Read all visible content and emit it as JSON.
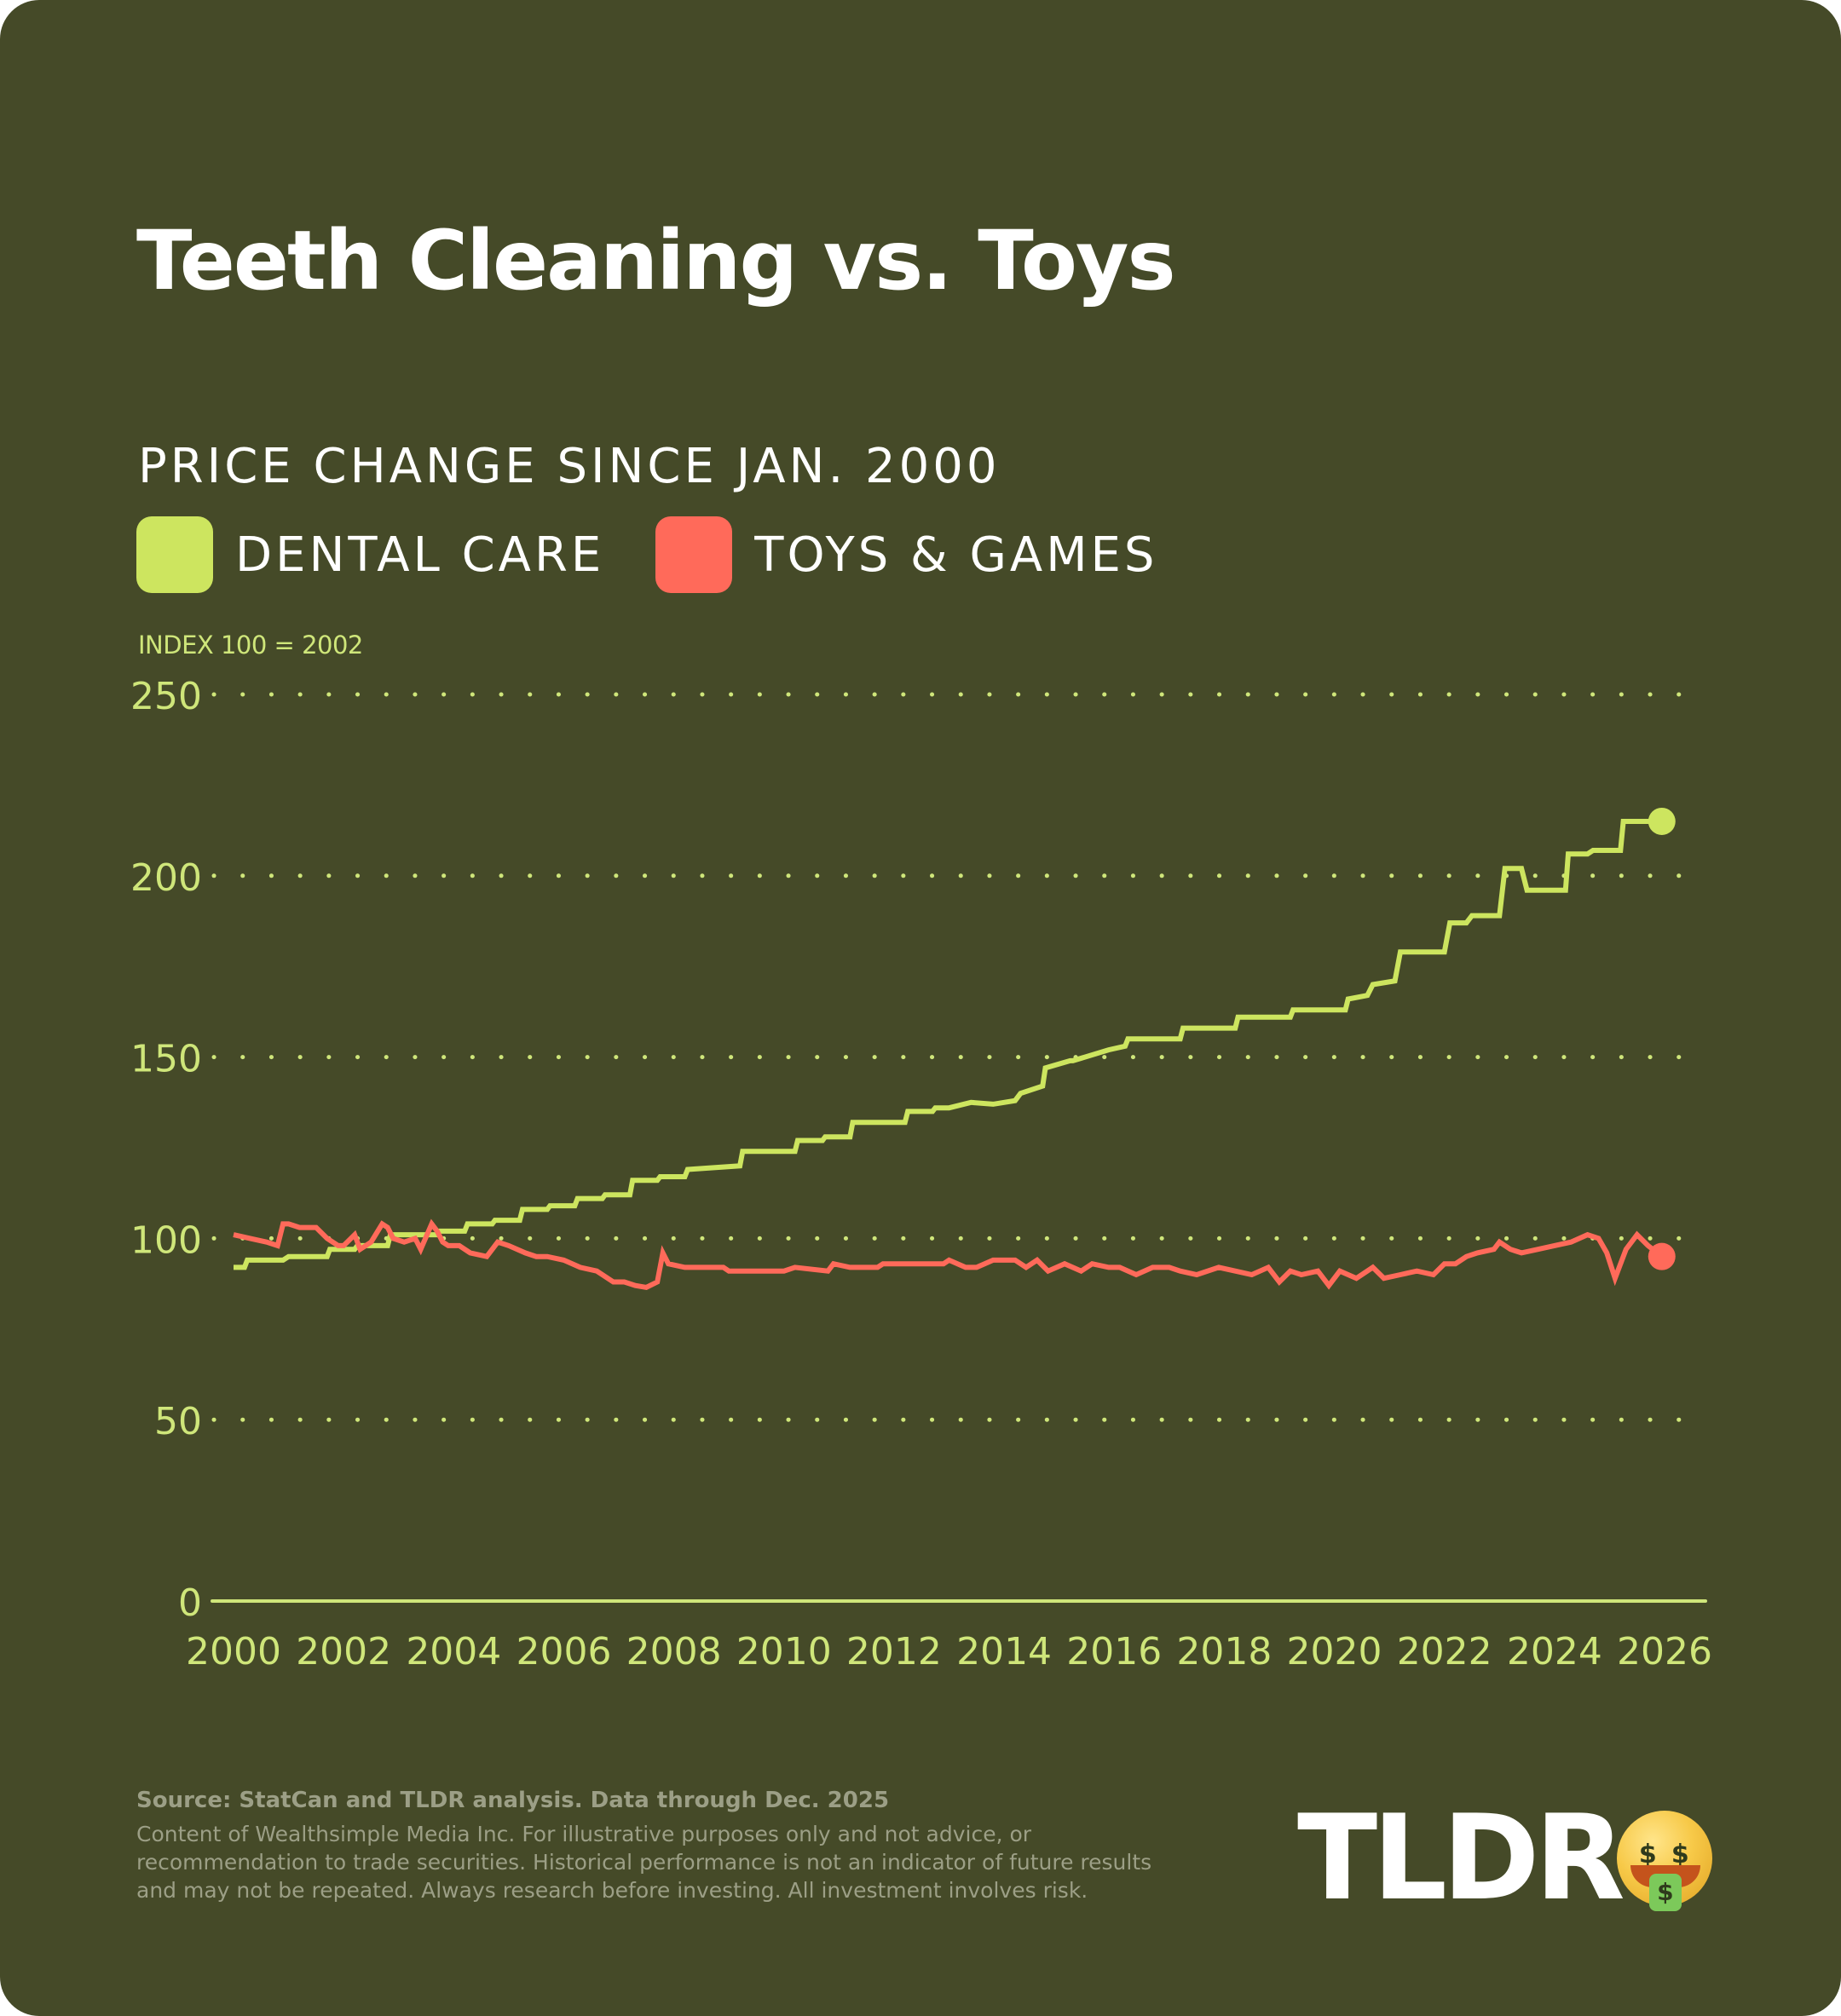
{
  "title": "Teeth Cleaning vs. Toys",
  "subtitle": "PRICE CHANGE SINCE JAN. 2000",
  "legend": [
    {
      "label": "DENTAL CARE",
      "color": "#cde55f"
    },
    {
      "label": "TOYS & GAMES",
      "color": "#ff6a5a"
    }
  ],
  "index_note": "INDEX 100 = 2002",
  "footer": {
    "source": "Source: StatCan and TLDR analysis. Data through Dec. 2025",
    "disclaimer": "Content of Wealthsimple Media Inc. For illustrative purposes only and not advice, or recommendation to trade securities. Historical performance is not an indicator of future results and may not be repeated. Always research before investing. All investment involves risk."
  },
  "logo": {
    "text": "TLDR",
    "emoji": "money-mouth-face"
  },
  "colors": {
    "background": "#454a28",
    "axis": "#cfe67a",
    "text": "#ffffff",
    "footer": "#9c9f86"
  },
  "chart_data": {
    "type": "line",
    "title": "Teeth Cleaning vs. Toys",
    "subtitle": "PRICE CHANGE SINCE JAN. 2000",
    "xlabel": "",
    "ylabel": "INDEX 100 = 2002",
    "xlim": [
      2000,
      2026
    ],
    "ylim": [
      0,
      250
    ],
    "x_ticks": [
      "2000",
      "2002",
      "2004",
      "2006",
      "2008",
      "2010",
      "2012",
      "2014",
      "2016",
      "2018",
      "2020",
      "2022",
      "2024",
      "2026"
    ],
    "y_ticks": [
      "0",
      "50",
      "100",
      "150",
      "200",
      "250"
    ],
    "grid": "horizontal dotted",
    "legend_position": "top-left",
    "series": [
      {
        "name": "DENTAL CARE",
        "color": "#cde55f",
        "end_marker": true,
        "x": [
          2000.0,
          2000.2,
          2000.25,
          2000.9,
          2001.0,
          2001.7,
          2001.75,
          2002.2,
          2002.25,
          2002.8,
          2002.85,
          2003.7,
          2003.75,
          2004.2,
          2004.25,
          2004.7,
          2004.75,
          2005.2,
          2005.25,
          2005.7,
          2005.75,
          2006.2,
          2006.25,
          2006.7,
          2006.75,
          2007.2,
          2007.25,
          2007.7,
          2007.75,
          2008.2,
          2008.25,
          2009.2,
          2009.25,
          2010.2,
          2010.25,
          2010.7,
          2010.75,
          2011.2,
          2011.25,
          2012.2,
          2012.25,
          2012.7,
          2012.75,
          2013.0,
          2013.4,
          2013.8,
          2014.2,
          2014.3,
          2014.7,
          2014.75,
          2015.2,
          2015.25,
          2015.9,
          2016.2,
          2016.25,
          2017.2,
          2017.25,
          2018.2,
          2018.25,
          2019.2,
          2019.25,
          2020.2,
          2020.25,
          2020.6,
          2020.7,
          2021.1,
          2021.2,
          2022.0,
          2022.1,
          2022.4,
          2022.5,
          2023.0,
          2023.1,
          2023.4,
          2023.5,
          2023.7,
          2024.2,
          2024.25,
          2024.6,
          2024.7,
          2025.2,
          2025.25,
          2025.95
        ],
        "y": [
          92,
          92,
          94,
          94,
          95,
          95,
          97,
          97,
          98,
          98,
          101,
          101,
          102,
          102,
          104,
          104,
          105,
          105,
          108,
          108,
          109,
          109,
          111,
          111,
          112,
          112,
          116,
          116,
          117,
          117,
          119,
          120,
          124,
          124,
          127,
          127,
          128,
          128,
          132,
          132,
          135,
          135,
          136,
          136,
          137.5,
          137,
          138,
          140,
          142,
          147,
          149,
          149,
          152,
          153,
          155,
          155,
          158,
          158,
          161,
          161,
          163,
          163,
          166,
          167,
          170,
          171,
          179,
          179,
          187,
          187,
          189,
          189,
          202,
          202,
          196,
          196,
          196,
          206,
          206,
          207,
          207,
          215,
          215
        ]
      },
      {
        "name": "TOYS & GAMES",
        "color": "#ff6a5a",
        "end_marker": true,
        "x": [
          2000.0,
          2000.3,
          2000.6,
          2000.8,
          2000.9,
          2001.0,
          2001.2,
          2001.5,
          2001.7,
          2001.9,
          2002.0,
          2002.2,
          2002.3,
          2002.5,
          2002.7,
          2002.8,
          2002.9,
          2003.1,
          2003.3,
          2003.4,
          2003.6,
          2003.7,
          2003.8,
          2003.9,
          2004.1,
          2004.3,
          2004.6,
          2004.8,
          2005.0,
          2005.3,
          2005.5,
          2005.7,
          2006.0,
          2006.3,
          2006.6,
          2006.7,
          2006.9,
          2007.1,
          2007.3,
          2007.5,
          2007.7,
          2007.8,
          2007.9,
          2008.2,
          2008.9,
          2009.0,
          2009.3,
          2010.0,
          2010.2,
          2010.8,
          2010.9,
          2011.2,
          2011.7,
          2011.8,
          2012.5,
          2012.9,
          2013.0,
          2013.3,
          2013.5,
          2013.8,
          2014.2,
          2014.4,
          2014.6,
          2014.8,
          2015.1,
          2015.4,
          2015.6,
          2015.9,
          2016.1,
          2016.4,
          2016.7,
          2017.0,
          2017.2,
          2017.5,
          2017.9,
          2018.2,
          2018.5,
          2018.8,
          2019.0,
          2019.2,
          2019.4,
          2019.7,
          2019.9,
          2020.1,
          2020.4,
          2020.7,
          2020.9,
          2021.2,
          2021.5,
          2021.8,
          2022.0,
          2022.2,
          2022.4,
          2022.6,
          2022.9,
          2023.0,
          2023.2,
          2023.4,
          2023.7,
          2024.0,
          2024.3,
          2024.6,
          2024.8,
          2024.95,
          2025.1,
          2025.3,
          2025.5,
          2025.7,
          2025.95
        ],
        "y": [
          101,
          100,
          99,
          98,
          104,
          104,
          103,
          103,
          100,
          98,
          98,
          101,
          97,
          99,
          104,
          103,
          100,
          99,
          100,
          97,
          104,
          102,
          99,
          98,
          98,
          96,
          95,
          99,
          98,
          96,
          95,
          95,
          94,
          92,
          91,
          90,
          88,
          88,
          87,
          86.5,
          88,
          96,
          93,
          92,
          92,
          91,
          91,
          91,
          92,
          91,
          93,
          92,
          92,
          93,
          93,
          93,
          94,
          92,
          92,
          94,
          94,
          92,
          94,
          91,
          93,
          91,
          93,
          92,
          92,
          90,
          92,
          92,
          91,
          90,
          92,
          91,
          90,
          92,
          88,
          91,
          90,
          91,
          87,
          91,
          89,
          92,
          89,
          90,
          91,
          90,
          93,
          93,
          95,
          96,
          97,
          99,
          97,
          96,
          97,
          98,
          99,
          101,
          100,
          96,
          89,
          97,
          101,
          98,
          95
        ]
      }
    ]
  }
}
